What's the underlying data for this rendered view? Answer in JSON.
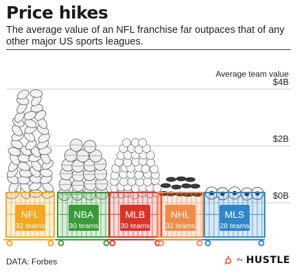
{
  "header": {
    "title": "Price hikes",
    "subtitle": "The average value of an NFL franchise far outpaces that of any other major US sports leagues."
  },
  "footer": {
    "source": "DATA: Forbes",
    "brand_prefix": "the",
    "brand_name": "HUSTLE"
  },
  "chart_data": {
    "type": "bar",
    "ylabel": "Average team value",
    "yticks": [
      {
        "value": 0,
        "label": "$0B"
      },
      {
        "value": 2,
        "label": "$2B"
      },
      {
        "value": 4,
        "label": "$4B"
      }
    ],
    "ylim": [
      0,
      4.5
    ],
    "categories": [
      "NFL",
      "NBA",
      "MLB",
      "NHL",
      "MLS"
    ],
    "sublabels": [
      "32 teams",
      "30 teams",
      "30 teams",
      "32 teams",
      "28 teams"
    ],
    "values": [
      4.1,
      2.2,
      2.2,
      1.0,
      0.6
    ],
    "grid": true,
    "colors": {
      "NFL": "#f5a623",
      "NBA": "#3a9b3a",
      "MLB": "#d9342b",
      "NHL": "#f28b4a",
      "MLS": "#2f86c9"
    }
  }
}
